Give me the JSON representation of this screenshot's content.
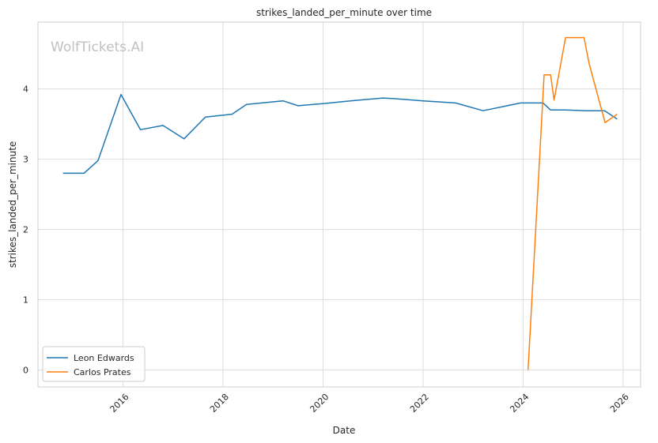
{
  "chart_data": {
    "type": "line",
    "title": "strikes_landed_per_minute over time",
    "xlabel": "Date",
    "ylabel": "strikes_landed_per_minute",
    "watermark": "WolfTickets.AI",
    "xlim": [
      2014.3,
      2026.35
    ],
    "ylim": [
      -0.24,
      4.95
    ],
    "grid": true,
    "legend_position": "lower-left",
    "x_ticks": [
      {
        "value": 2016,
        "label": "2016"
      },
      {
        "value": 2018,
        "label": "2018"
      },
      {
        "value": 2020,
        "label": "2020"
      },
      {
        "value": 2022,
        "label": "2022"
      },
      {
        "value": 2024,
        "label": "2024"
      },
      {
        "value": 2026,
        "label": "2026"
      }
    ],
    "y_ticks": [
      {
        "value": 0,
        "label": "0"
      },
      {
        "value": 1,
        "label": "1"
      },
      {
        "value": 2,
        "label": "2"
      },
      {
        "value": 3,
        "label": "3"
      },
      {
        "value": 4,
        "label": "4"
      }
    ],
    "series": [
      {
        "name": "Leon Edwards",
        "color": "#1f77b4",
        "x": [
          2014.8,
          2015.22,
          2015.5,
          2015.96,
          2016.35,
          2016.8,
          2017.22,
          2017.65,
          2018.18,
          2018.47,
          2019.2,
          2019.5,
          2020.0,
          2020.55,
          2021.2,
          2021.45,
          2022.0,
          2022.65,
          2023.2,
          2023.95,
          2024.4,
          2024.55,
          2024.85,
          2025.25,
          2025.63,
          2025.88
        ],
        "values": [
          2.8,
          2.8,
          2.98,
          3.92,
          3.42,
          3.48,
          3.29,
          3.6,
          3.64,
          3.78,
          3.83,
          3.76,
          3.79,
          3.83,
          3.87,
          3.86,
          3.83,
          3.8,
          3.69,
          3.8,
          3.8,
          3.7,
          3.7,
          3.69,
          3.69,
          3.57
        ]
      },
      {
        "name": "Carlos Prates",
        "color": "#ff7f0e",
        "x": [
          2024.1,
          2024.42,
          2024.55,
          2024.62,
          2024.85,
          2025.22,
          2025.32,
          2025.64,
          2025.88
        ],
        "values": [
          0.0,
          4.2,
          4.2,
          3.84,
          4.73,
          4.73,
          4.36,
          3.52,
          3.64
        ]
      }
    ]
  }
}
